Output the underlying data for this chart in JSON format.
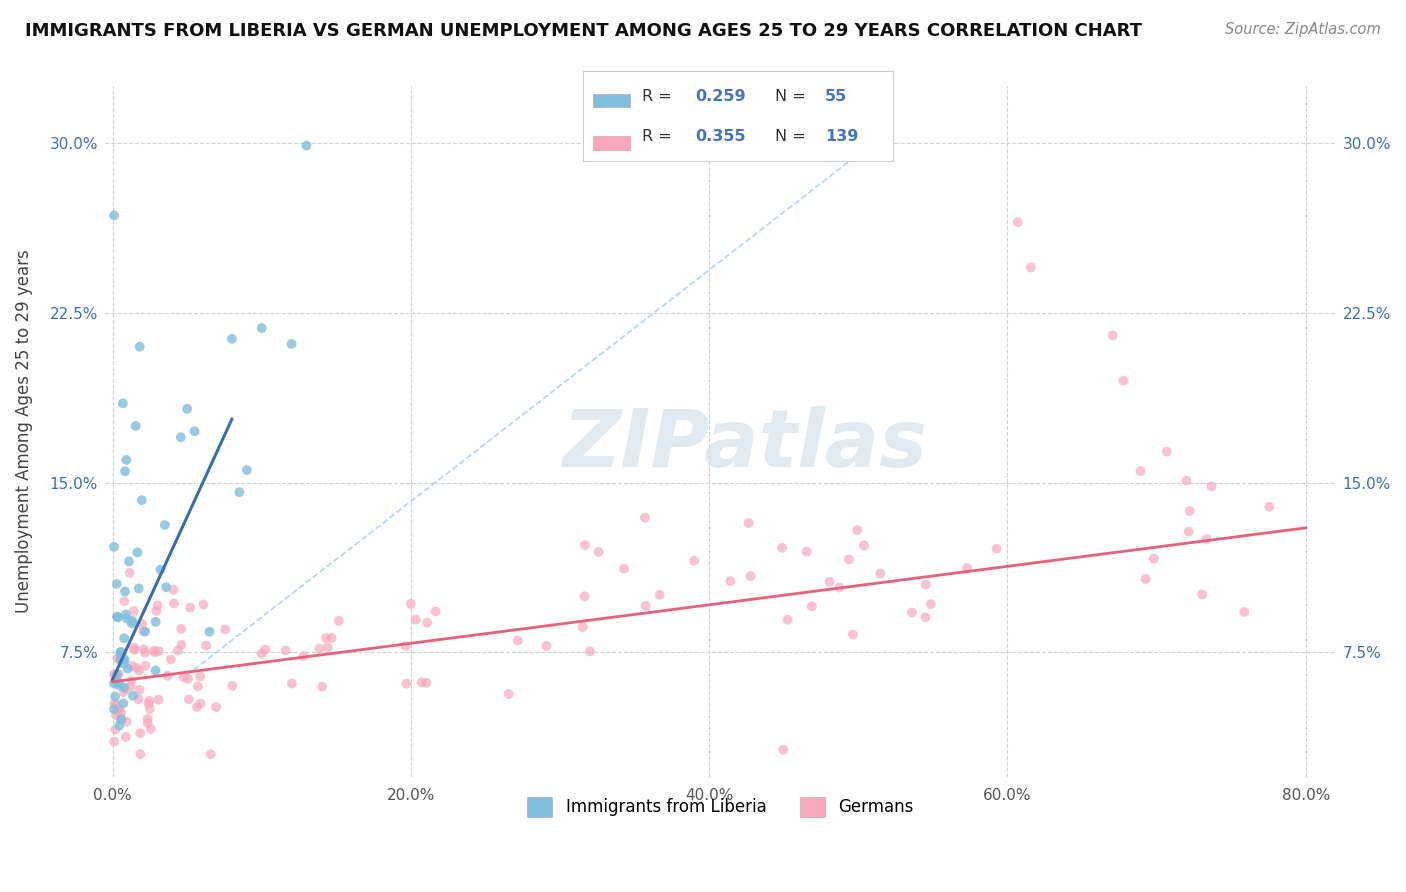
{
  "title": "IMMIGRANTS FROM LIBERIA VS GERMAN UNEMPLOYMENT AMONG AGES 25 TO 29 YEARS CORRELATION CHART",
  "source": "Source: ZipAtlas.com",
  "ylabel": "Unemployment Among Ages 25 to 29 years",
  "ytick_labels": [
    "7.5%",
    "15.0%",
    "22.5%",
    "30.0%"
  ],
  "ytick_vals": [
    0.075,
    0.15,
    0.225,
    0.3
  ],
  "xtick_labels": [
    "0.0%",
    "20.0%",
    "40.0%",
    "60.0%",
    "80.0%"
  ],
  "xtick_vals": [
    0.0,
    0.2,
    0.4,
    0.6,
    0.8
  ],
  "xmin": -0.005,
  "xmax": 0.82,
  "ymin": 0.02,
  "ymax": 0.325,
  "legend_R1": "0.259",
  "legend_N1": "55",
  "legend_R2": "0.355",
  "legend_N2": "139",
  "color_blue": "#7fbfdd",
  "color_blue_line": "#3a6faa",
  "color_pink": "#f7a8bc",
  "color_pink_line": "#e8607a",
  "color_diag": "#aaccee",
  "background": "#ffffff",
  "title_fontsize": 13,
  "axis_label_color": "#4070b0",
  "grid_color": "#cccccc"
}
